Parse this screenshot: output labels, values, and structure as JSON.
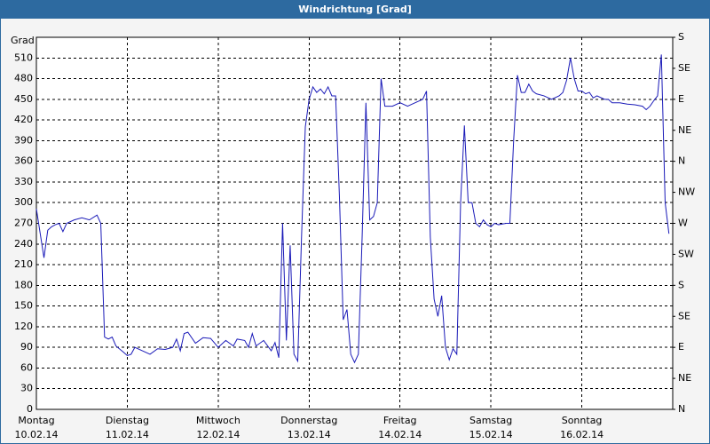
{
  "chart_data": {
    "type": "line",
    "title": "Windrichtung [Grad]",
    "y_label": "Grad",
    "xlim": [
      0,
      168
    ],
    "xticks": [
      {
        "value": 0,
        "label": "Montag"
      },
      {
        "value": 24,
        "label": "Dienstag"
      },
      {
        "value": 48,
        "label": "Mittwoch"
      },
      {
        "value": 72,
        "label": "Donnerstag"
      },
      {
        "value": 96,
        "label": "Freitag"
      },
      {
        "value": 120,
        "label": "Samstag"
      },
      {
        "value": 144,
        "label": "Sonntag"
      }
    ],
    "xtick_dates": [
      "10.02.14",
      "11.02.14",
      "12.02.14",
      "13.02.14",
      "14.02.14",
      "15.02.14",
      "16.02.14"
    ],
    "ylim": [
      0,
      540
    ],
    "yticks": [
      0,
      30,
      60,
      90,
      120,
      150,
      180,
      210,
      240,
      270,
      300,
      330,
      360,
      390,
      420,
      450,
      480,
      510
    ],
    "y2lim": [
      0,
      540
    ],
    "y2ticks": [
      {
        "value": 0,
        "label": "N"
      },
      {
        "value": 45,
        "label": "NE"
      },
      {
        "value": 90,
        "label": "E"
      },
      {
        "value": 135,
        "label": "SE"
      },
      {
        "value": 180,
        "label": "S"
      },
      {
        "value": 225,
        "label": "SW"
      },
      {
        "value": 270,
        "label": "W"
      },
      {
        "value": 315,
        "label": "NW"
      },
      {
        "value": 360,
        "label": "N"
      },
      {
        "value": 405,
        "label": "NE"
      },
      {
        "value": 450,
        "label": "E"
      },
      {
        "value": 495,
        "label": "SE"
      },
      {
        "value": 540,
        "label": "S"
      }
    ],
    "grid": true,
    "series": [
      {
        "name": "Windrichtung",
        "color": "#1a1ab8",
        "x": [
          0,
          2,
          3,
          4,
          5,
          6,
          7,
          8,
          10,
          12,
          14,
          16,
          17,
          18,
          19,
          20,
          21,
          23,
          24,
          25,
          26,
          28,
          30,
          32,
          34,
          36,
          37,
          38,
          39,
          40,
          42,
          44,
          46,
          48,
          50,
          52,
          53,
          55,
          56,
          57,
          58,
          60,
          62,
          63,
          64,
          65,
          66,
          67,
          68,
          69,
          70,
          71,
          72,
          73,
          74,
          75,
          76,
          77,
          78,
          79,
          80,
          81,
          82,
          83,
          84,
          85,
          86,
          87,
          88,
          89,
          90,
          91,
          92,
          94,
          96,
          98,
          100,
          102,
          103,
          104,
          105,
          106,
          107,
          108,
          109,
          110,
          111,
          112,
          113,
          114,
          115,
          116,
          117,
          118,
          119,
          120,
          121,
          122,
          124,
          125,
          126,
          127,
          128,
          129,
          130,
          131,
          132,
          134,
          136,
          138,
          139,
          140,
          141,
          142,
          143,
          144,
          145,
          146,
          147,
          148,
          150,
          151,
          152,
          154,
          156,
          158,
          160,
          161,
          162,
          163,
          164,
          165,
          166,
          167
        ],
        "values": [
          291,
          220,
          260,
          265,
          268,
          270,
          258,
          270,
          275,
          278,
          275,
          282,
          270,
          105,
          102,
          105,
          92,
          83,
          78,
          80,
          90,
          85,
          80,
          88,
          87,
          90,
          102,
          85,
          110,
          112,
          96,
          104,
          103,
          90,
          100,
          92,
          102,
          100,
          90,
          110,
          92,
          100,
          85,
          97,
          75,
          270,
          100,
          238,
          80,
          70,
          250,
          410,
          450,
          468,
          460,
          465,
          458,
          468,
          455,
          455,
          310,
          130,
          145,
          80,
          68,
          80,
          250,
          445,
          275,
          280,
          300,
          480,
          440,
          440,
          445,
          440,
          445,
          450,
          462,
          250,
          160,
          135,
          165,
          90,
          72,
          88,
          80,
          300,
          412,
          300,
          300,
          270,
          265,
          275,
          268,
          265,
          270,
          268,
          270,
          270,
          390,
          485,
          460,
          460,
          472,
          462,
          458,
          455,
          450,
          455,
          460,
          478,
          510,
          480,
          462,
          462,
          458,
          460,
          452,
          455,
          450,
          450,
          445,
          445,
          443,
          442,
          440,
          435,
          440,
          448,
          455,
          515,
          300,
          255
        ]
      }
    ]
  }
}
